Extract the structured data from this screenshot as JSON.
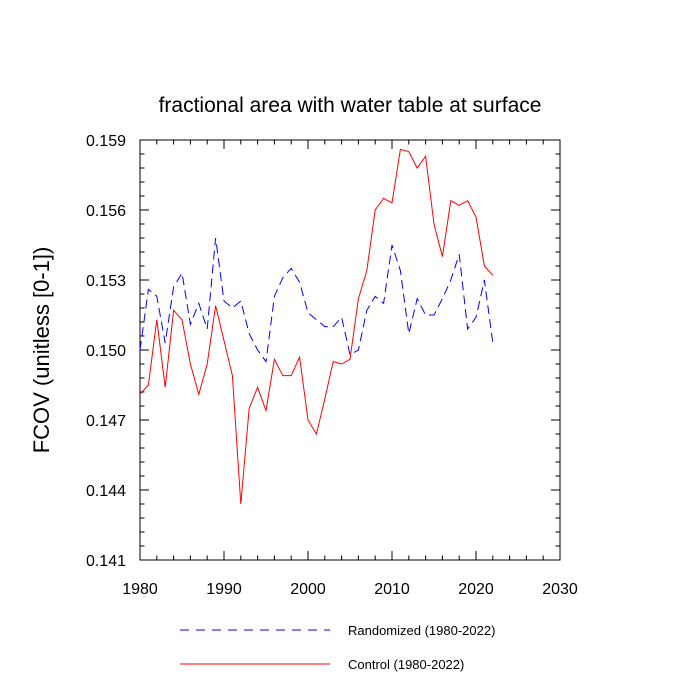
{
  "chart_data": {
    "type": "line",
    "title": "fractional area with water table at surface",
    "xlabel": "",
    "ylabel": "FCOV  (unitless [0-1])",
    "xlim": [
      1980,
      2030
    ],
    "ylim": [
      0.141,
      0.159
    ],
    "xticks": [
      1980,
      1990,
      2000,
      2010,
      2020,
      2030
    ],
    "xtick_labels": [
      "1980",
      "1990",
      "2000",
      "2010",
      "2020",
      "2030"
    ],
    "yticks": [
      0.141,
      0.144,
      0.147,
      0.15,
      0.153,
      0.156,
      0.159
    ],
    "ytick_labels": [
      "0.141",
      "0.144",
      "0.147",
      "0.150",
      "0.153",
      "0.156",
      "0.159"
    ],
    "grid": false,
    "legend_position": "bottom",
    "x": [
      1980,
      1981,
      1982,
      1983,
      1984,
      1985,
      1986,
      1987,
      1988,
      1989,
      1990,
      1991,
      1992,
      1993,
      1994,
      1995,
      1996,
      1997,
      1998,
      1999,
      2000,
      2001,
      2002,
      2003,
      2004,
      2005,
      2006,
      2007,
      2008,
      2009,
      2010,
      2011,
      2012,
      2013,
      2014,
      2015,
      2016,
      2017,
      2018,
      2019,
      2020,
      2021,
      2022
    ],
    "series": [
      {
        "name": "Randomized (1980-2022)",
        "color": "#0000ff",
        "style": "dashed",
        "values": [
          0.15,
          0.1526,
          0.1523,
          0.1503,
          0.1527,
          0.1533,
          0.1511,
          0.152,
          0.1509,
          0.1548,
          0.1521,
          0.1518,
          0.1521,
          0.1507,
          0.15,
          0.1495,
          0.1523,
          0.1531,
          0.1535,
          0.1529,
          0.1516,
          0.1513,
          0.151,
          0.151,
          0.1514,
          0.1498,
          0.15,
          0.1517,
          0.1523,
          0.152,
          0.1545,
          0.1534,
          0.1507,
          0.1522,
          0.1515,
          0.1515,
          0.1522,
          0.153,
          0.1541,
          0.1509,
          0.1514,
          0.153,
          0.1503
        ]
      },
      {
        "name": "Control (1980-2022)",
        "color": "#ff0000",
        "style": "solid",
        "values": [
          0.1481,
          0.1485,
          0.1513,
          0.1484,
          0.1517,
          0.1513,
          0.1494,
          0.1481,
          0.1494,
          0.1519,
          0.1504,
          0.1489,
          0.1434,
          0.1475,
          0.1484,
          0.1474,
          0.1496,
          0.1489,
          0.1489,
          0.1497,
          0.147,
          0.1464,
          0.1479,
          0.1495,
          0.1494,
          0.1496,
          0.1522,
          0.1534,
          0.156,
          0.1565,
          0.1563,
          0.1586,
          0.1585,
          0.1578,
          0.1583,
          0.1554,
          0.154,
          0.1564,
          0.1562,
          0.1564,
          0.1557,
          0.1536,
          0.1532
        ]
      }
    ]
  }
}
